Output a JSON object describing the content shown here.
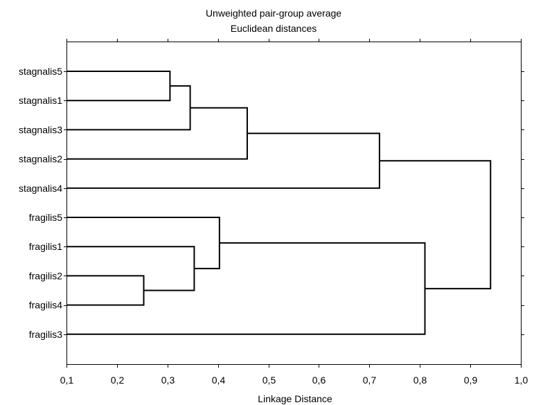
{
  "chart_data": {
    "type": "dendrogram",
    "title": "Unweighted pair-group average",
    "subtitle": "Euclidean distances",
    "xlabel": "Linkage Distance",
    "xlim": [
      0.1,
      1.0
    ],
    "xticks": [
      0.1,
      0.2,
      0.3,
      0.4,
      0.5,
      0.6,
      0.7,
      0.8,
      0.9,
      1.0
    ],
    "xtick_labels": [
      "0,1",
      "0,2",
      "0,3",
      "0,4",
      "0,5",
      "0,6",
      "0,7",
      "0,8",
      "0,9",
      "1,0"
    ],
    "leaves": [
      "stagnalis5",
      "stagnalis1",
      "stagnalis3",
      "stagnalis2",
      "stagnalis4",
      "fragilis5",
      "fragilis1",
      "fragilis2",
      "fragilis4",
      "fragilis3"
    ],
    "merges": [
      {
        "a": "stagnalis5",
        "b": "stagnalis1",
        "distance": 0.305
      },
      {
        "a": "C1",
        "b": "stagnalis3",
        "distance": 0.345
      },
      {
        "a": "C2",
        "b": "stagnalis2",
        "distance": 0.458
      },
      {
        "a": "C3",
        "b": "stagnalis4",
        "distance": 0.72
      },
      {
        "a": "fragilis2",
        "b": "fragilis4",
        "distance": 0.253
      },
      {
        "a": "fragilis1",
        "b": "C5",
        "distance": 0.353
      },
      {
        "a": "fragilis5",
        "b": "C6",
        "distance": 0.403
      },
      {
        "a": "C7",
        "b": "fragilis3",
        "distance": 0.81
      },
      {
        "a": "C4",
        "b": "C8",
        "distance": 0.94
      }
    ]
  }
}
